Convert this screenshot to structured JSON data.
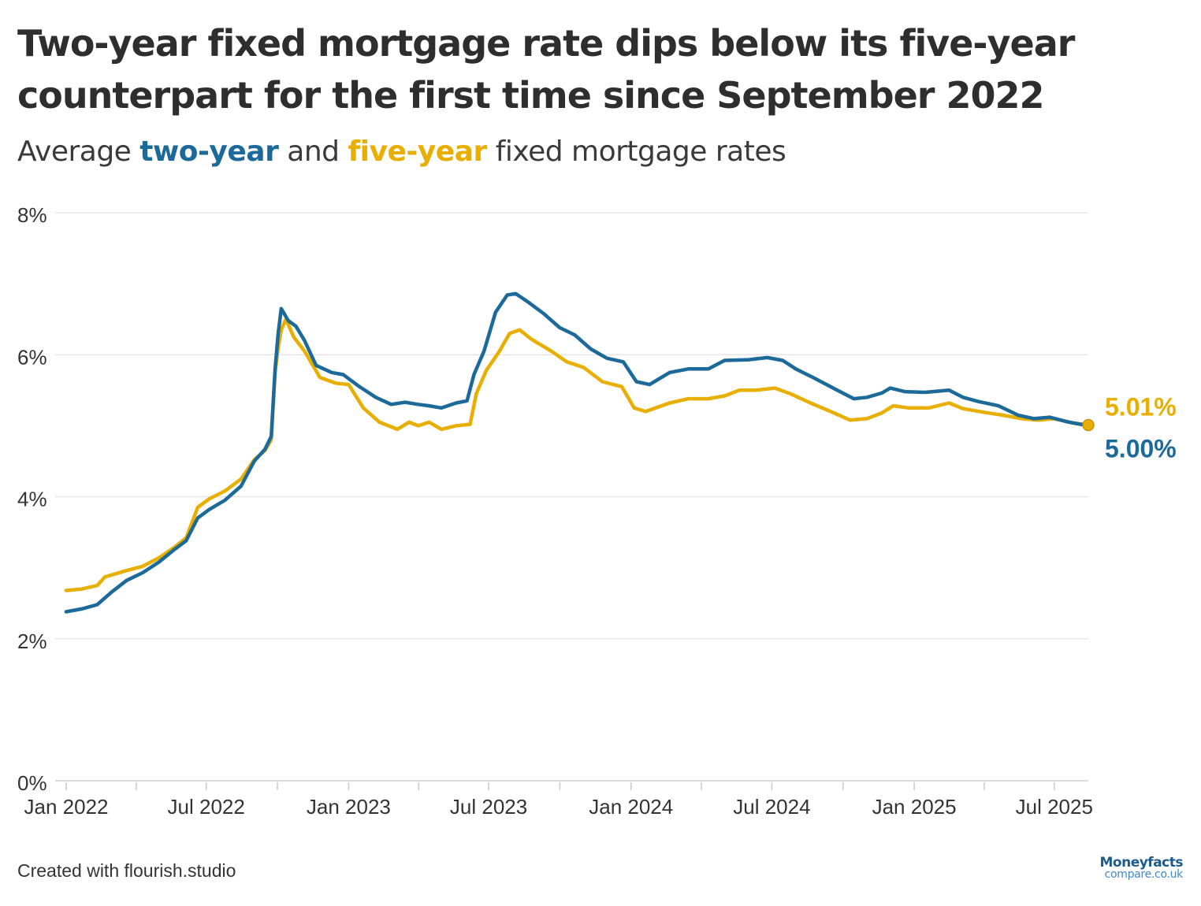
{
  "title": "Two-year fixed mortgage rate dips below its five-year counterpart for the first time since September 2022",
  "subtitle": {
    "prefix": "Average ",
    "two_year": "two-year",
    "middle": " and ",
    "five_year": "five-year",
    "suffix": " fixed mortgage rates"
  },
  "footer": "Created with flourish.studio",
  "logo": {
    "line1": "Moneyfacts",
    "line2": "compare.co.uk"
  },
  "colors": {
    "two_year": "#1c6a99",
    "five_year": "#e8ae00",
    "grid": "#e6e6e6",
    "axis_text": "#333333"
  },
  "chart_data": {
    "type": "line",
    "xlabel": "",
    "ylabel": "",
    "ylim": [
      0,
      8
    ],
    "y_ticks": [
      0,
      2,
      4,
      6,
      8
    ],
    "y_tick_labels": [
      "0%",
      "2%",
      "4%",
      "6%",
      "8%"
    ],
    "x_range": [
      "2022-01-01",
      "2025-08-14"
    ],
    "x_ticks": [
      "2022-01-01",
      "2022-07-01",
      "2023-01-01",
      "2023-07-01",
      "2024-01-01",
      "2024-07-01",
      "2025-01-01",
      "2025-07-01"
    ],
    "x_tick_labels": [
      "Jan 2022",
      "Jul 2022",
      "Jan 2023",
      "Jul 2023",
      "Jan 2024",
      "Jul 2024",
      "Jan 2025",
      "Jul 2025"
    ],
    "grid": true,
    "series": [
      {
        "name": "two-year",
        "color": "#1c6a99",
        "end_label": "5.00%",
        "points": [
          [
            "2022-01-01",
            2.38
          ],
          [
            "2022-01-21",
            2.42
          ],
          [
            "2022-02-10",
            2.48
          ],
          [
            "2022-03-01",
            2.66
          ],
          [
            "2022-03-20",
            2.82
          ],
          [
            "2022-04-10",
            2.93
          ],
          [
            "2022-05-01",
            3.08
          ],
          [
            "2022-05-20",
            3.25
          ],
          [
            "2022-06-05",
            3.38
          ],
          [
            "2022-06-20",
            3.7
          ],
          [
            "2022-07-05",
            3.82
          ],
          [
            "2022-07-25",
            3.95
          ],
          [
            "2022-08-15",
            4.15
          ],
          [
            "2022-09-01",
            4.5
          ],
          [
            "2022-09-15",
            4.67
          ],
          [
            "2022-09-23",
            4.85
          ],
          [
            "2022-09-28",
            5.8
          ],
          [
            "2022-10-02",
            6.3
          ],
          [
            "2022-10-06",
            6.65
          ],
          [
            "2022-10-15",
            6.48
          ],
          [
            "2022-10-25",
            6.4
          ],
          [
            "2022-11-05",
            6.2
          ],
          [
            "2022-11-20",
            5.85
          ],
          [
            "2022-12-10",
            5.75
          ],
          [
            "2022-12-25",
            5.72
          ],
          [
            "2023-01-15",
            5.55
          ],
          [
            "2023-02-05",
            5.4
          ],
          [
            "2023-02-25",
            5.3
          ],
          [
            "2023-03-15",
            5.33
          ],
          [
            "2023-04-01",
            5.3
          ],
          [
            "2023-04-15",
            5.28
          ],
          [
            "2023-05-01",
            5.25
          ],
          [
            "2023-05-20",
            5.32
          ],
          [
            "2023-06-03",
            5.35
          ],
          [
            "2023-06-12",
            5.72
          ],
          [
            "2023-06-25",
            6.05
          ],
          [
            "2023-07-10",
            6.6
          ],
          [
            "2023-07-25",
            6.84
          ],
          [
            "2023-08-05",
            6.86
          ],
          [
            "2023-08-20",
            6.75
          ],
          [
            "2023-09-10",
            6.58
          ],
          [
            "2023-10-01",
            6.38
          ],
          [
            "2023-10-20",
            6.28
          ],
          [
            "2023-11-10",
            6.08
          ],
          [
            "2023-12-01",
            5.95
          ],
          [
            "2023-12-22",
            5.9
          ],
          [
            "2024-01-08",
            5.62
          ],
          [
            "2024-01-25",
            5.58
          ],
          [
            "2024-02-20",
            5.75
          ],
          [
            "2024-03-15",
            5.8
          ],
          [
            "2024-04-10",
            5.8
          ],
          [
            "2024-05-01",
            5.92
          ],
          [
            "2024-06-01",
            5.93
          ],
          [
            "2024-06-25",
            5.96
          ],
          [
            "2024-07-15",
            5.92
          ],
          [
            "2024-08-01",
            5.8
          ],
          [
            "2024-08-25",
            5.67
          ],
          [
            "2024-09-20",
            5.52
          ],
          [
            "2024-10-15",
            5.38
          ],
          [
            "2024-11-01",
            5.4
          ],
          [
            "2024-11-20",
            5.46
          ],
          [
            "2024-12-01",
            5.53
          ],
          [
            "2024-12-20",
            5.48
          ],
          [
            "2025-01-15",
            5.47
          ],
          [
            "2025-02-15",
            5.5
          ],
          [
            "2025-03-05",
            5.4
          ],
          [
            "2025-03-25",
            5.34
          ],
          [
            "2025-04-20",
            5.28
          ],
          [
            "2025-05-15",
            5.15
          ],
          [
            "2025-06-05",
            5.1
          ],
          [
            "2025-06-25",
            5.12
          ],
          [
            "2025-07-20",
            5.05
          ],
          [
            "2025-08-14",
            5.0
          ]
        ]
      },
      {
        "name": "five-year",
        "color": "#e8ae00",
        "end_label": "5.01%",
        "points": [
          [
            "2022-01-01",
            2.68
          ],
          [
            "2022-01-21",
            2.7
          ],
          [
            "2022-02-10",
            2.75
          ],
          [
            "2022-02-20",
            2.87
          ],
          [
            "2022-03-20",
            2.96
          ],
          [
            "2022-04-10",
            3.02
          ],
          [
            "2022-05-01",
            3.14
          ],
          [
            "2022-05-20",
            3.28
          ],
          [
            "2022-06-05",
            3.42
          ],
          [
            "2022-06-20",
            3.85
          ],
          [
            "2022-07-05",
            3.97
          ],
          [
            "2022-07-25",
            4.08
          ],
          [
            "2022-08-15",
            4.25
          ],
          [
            "2022-09-01",
            4.52
          ],
          [
            "2022-09-15",
            4.65
          ],
          [
            "2022-09-23",
            4.8
          ],
          [
            "2022-09-28",
            5.75
          ],
          [
            "2022-10-02",
            6.1
          ],
          [
            "2022-10-06",
            6.35
          ],
          [
            "2022-10-12",
            6.5
          ],
          [
            "2022-10-22",
            6.25
          ],
          [
            "2022-11-05",
            6.05
          ],
          [
            "2022-11-25",
            5.68
          ],
          [
            "2022-12-15",
            5.6
          ],
          [
            "2023-01-01",
            5.58
          ],
          [
            "2023-01-20",
            5.25
          ],
          [
            "2023-02-10",
            5.05
          ],
          [
            "2023-03-05",
            4.95
          ],
          [
            "2023-03-20",
            5.05
          ],
          [
            "2023-04-01",
            5.0
          ],
          [
            "2023-04-15",
            5.05
          ],
          [
            "2023-05-01",
            4.95
          ],
          [
            "2023-05-20",
            5.0
          ],
          [
            "2023-06-07",
            5.02
          ],
          [
            "2023-06-15",
            5.45
          ],
          [
            "2023-06-28",
            5.78
          ],
          [
            "2023-07-15",
            6.05
          ],
          [
            "2023-07-28",
            6.3
          ],
          [
            "2023-08-10",
            6.35
          ],
          [
            "2023-08-25",
            6.22
          ],
          [
            "2023-09-20",
            6.05
          ],
          [
            "2023-10-10",
            5.9
          ],
          [
            "2023-11-01",
            5.82
          ],
          [
            "2023-11-25",
            5.62
          ],
          [
            "2023-12-20",
            5.55
          ],
          [
            "2024-01-05",
            5.25
          ],
          [
            "2024-01-20",
            5.2
          ],
          [
            "2024-02-20",
            5.32
          ],
          [
            "2024-03-15",
            5.38
          ],
          [
            "2024-04-10",
            5.38
          ],
          [
            "2024-05-01",
            5.42
          ],
          [
            "2024-05-20",
            5.5
          ],
          [
            "2024-06-10",
            5.5
          ],
          [
            "2024-07-05",
            5.53
          ],
          [
            "2024-07-25",
            5.45
          ],
          [
            "2024-08-20",
            5.32
          ],
          [
            "2024-09-15",
            5.2
          ],
          [
            "2024-10-10",
            5.08
          ],
          [
            "2024-11-01",
            5.1
          ],
          [
            "2024-11-20",
            5.18
          ],
          [
            "2024-12-05",
            5.28
          ],
          [
            "2024-12-25",
            5.25
          ],
          [
            "2025-01-20",
            5.25
          ],
          [
            "2025-02-15",
            5.32
          ],
          [
            "2025-03-05",
            5.24
          ],
          [
            "2025-04-01",
            5.19
          ],
          [
            "2025-04-25",
            5.15
          ],
          [
            "2025-05-20",
            5.1
          ],
          [
            "2025-06-10",
            5.08
          ],
          [
            "2025-07-01",
            5.1
          ],
          [
            "2025-07-25",
            5.04
          ],
          [
            "2025-08-14",
            5.01
          ]
        ]
      }
    ]
  }
}
